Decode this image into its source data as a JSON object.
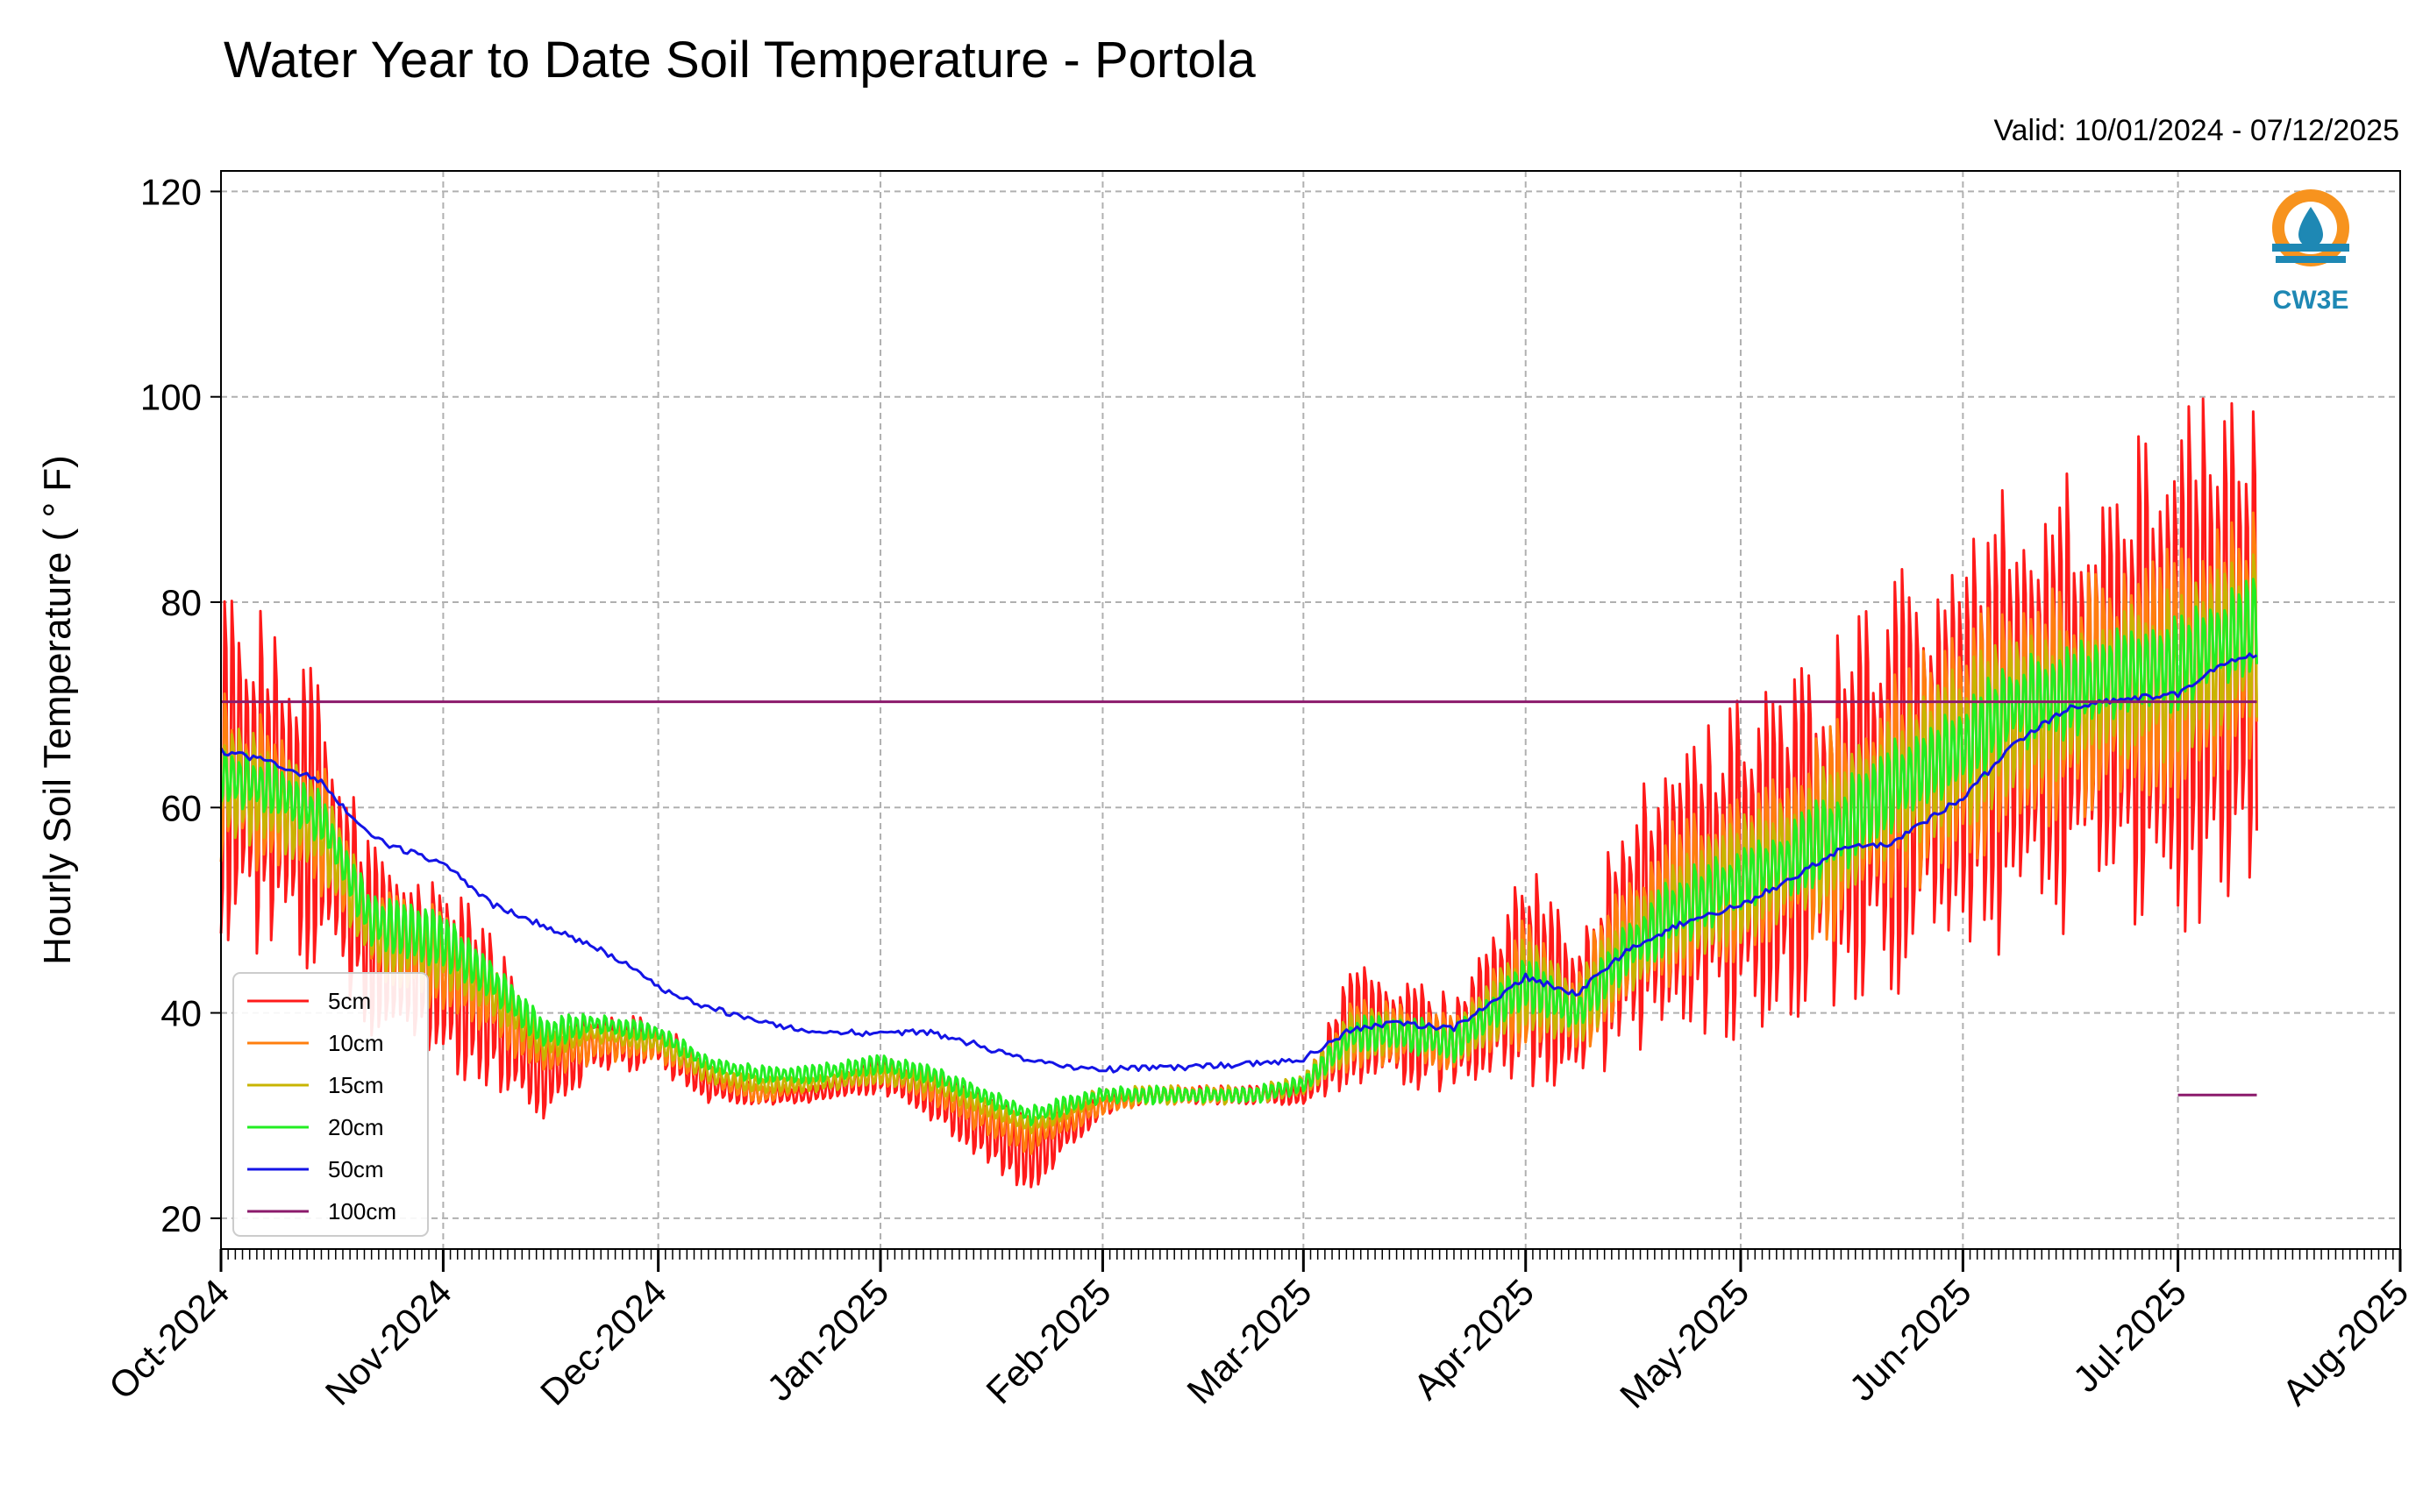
{
  "chart_data": {
    "type": "line",
    "title": "Water Year to Date Soil Temperature - Portola",
    "subtitle": "Valid: 10/01/2024 - 07/12/2025",
    "xlabel": "",
    "ylabel": "Hourly Soil Temperature ( ° F)",
    "ylim": [
      17,
      122
    ],
    "yticks": [
      20,
      40,
      60,
      80,
      100,
      120
    ],
    "xlim": [
      "2024-10-01",
      "2025-08-01"
    ],
    "x_tick_labels": [
      "Oct-2024",
      "Nov-2024",
      "Dec-2024",
      "Jan-2025",
      "Feb-2025",
      "Mar-2025",
      "Apr-2025",
      "May-2025",
      "Jun-2025",
      "Jul-2025",
      "Aug-2025"
    ],
    "x_tick_dates": [
      "2024-10-01",
      "2024-11-01",
      "2024-12-01",
      "2025-01-01",
      "2025-02-01",
      "2025-03-01",
      "2025-04-01",
      "2025-05-01",
      "2025-06-01",
      "2025-07-01",
      "2025-08-01"
    ],
    "grid": true,
    "legend_position": "lower-left",
    "logo_text": "CW3E",
    "series": [
      {
        "name": "5cm",
        "color": "#ff1a1a",
        "x": [
          "2024-10-01",
          "2024-10-08",
          "2024-10-15",
          "2024-10-22",
          "2024-11-01",
          "2024-11-08",
          "2024-11-15",
          "2024-11-22",
          "2024-12-01",
          "2024-12-08",
          "2024-12-15",
          "2024-12-22",
          "2025-01-01",
          "2025-01-08",
          "2025-01-15",
          "2025-01-22",
          "2025-02-01",
          "2025-02-08",
          "2025-02-15",
          "2025-02-22",
          "2025-03-01",
          "2025-03-08",
          "2025-03-15",
          "2025-03-22",
          "2025-04-01",
          "2025-04-08",
          "2025-04-15",
          "2025-04-22",
          "2025-05-01",
          "2025-05-08",
          "2025-05-15",
          "2025-05-22",
          "2025-06-01",
          "2025-06-08",
          "2025-06-15",
          "2025-06-22",
          "2025-07-01",
          "2025-07-06",
          "2025-07-12"
        ],
        "mean": [
          64,
          62,
          58,
          47,
          44,
          40,
          34,
          37,
          37,
          33,
          32,
          32,
          34,
          32,
          29,
          26,
          31,
          32,
          32,
          32,
          32,
          39,
          38,
          37,
          44,
          40,
          48,
          52,
          54,
          56,
          59,
          62,
          66,
          69,
          70,
          72,
          73,
          75,
          76
        ],
        "amp": [
          19,
          18,
          17,
          10,
          11,
          8,
          6,
          3,
          3,
          2,
          1,
          1,
          2,
          3,
          4,
          4,
          1,
          1,
          1,
          1,
          1,
          7,
          6,
          5,
          12,
          9,
          13,
          16,
          18,
          19,
          21,
          22,
          24,
          25,
          26,
          27,
          28,
          28,
          28
        ]
      },
      {
        "name": "10cm",
        "color": "#ff7f0e",
        "x": [
          "2024-10-01",
          "2024-10-08",
          "2024-10-15",
          "2024-10-22",
          "2024-11-01",
          "2024-11-08",
          "2024-11-15",
          "2024-11-22",
          "2024-12-01",
          "2024-12-08",
          "2024-12-15",
          "2024-12-22",
          "2025-01-01",
          "2025-01-08",
          "2025-01-15",
          "2025-01-22",
          "2025-02-01",
          "2025-02-08",
          "2025-02-15",
          "2025-02-22",
          "2025-03-01",
          "2025-03-08",
          "2025-03-15",
          "2025-03-22",
          "2025-04-01",
          "2025-04-08",
          "2025-04-15",
          "2025-04-22",
          "2025-05-01",
          "2025-05-08",
          "2025-05-15",
          "2025-05-22",
          "2025-06-01",
          "2025-06-08",
          "2025-06-15",
          "2025-06-22",
          "2025-07-01",
          "2025-07-06",
          "2025-07-12"
        ],
        "mean": [
          63,
          61,
          58,
          48,
          45,
          41,
          36,
          37,
          37,
          34,
          32,
          33,
          34,
          33,
          30,
          28,
          31,
          32,
          32,
          32,
          33,
          38,
          38,
          37,
          43,
          40,
          47,
          51,
          53,
          56,
          58,
          62,
          66,
          69,
          70,
          72,
          73,
          75,
          77
        ],
        "amp": [
          9,
          8,
          8,
          5,
          6,
          4,
          3,
          2,
          2,
          1,
          1,
          1,
          1,
          2,
          2,
          2,
          1,
          1,
          1,
          1,
          1,
          4,
          3,
          3,
          7,
          5,
          8,
          9,
          10,
          11,
          12,
          12,
          13,
          13,
          13,
          14,
          14,
          14,
          14
        ]
      },
      {
        "name": "15cm",
        "color": "#c8b400",
        "x": [
          "2024-10-01",
          "2024-10-08",
          "2024-10-15",
          "2024-10-22",
          "2024-11-01",
          "2024-11-08",
          "2024-11-15",
          "2024-11-22",
          "2024-12-01",
          "2024-12-08",
          "2024-12-15",
          "2024-12-22",
          "2025-01-01",
          "2025-01-08",
          "2025-01-15",
          "2025-01-22",
          "2025-02-01",
          "2025-02-08",
          "2025-02-15",
          "2025-02-22",
          "2025-03-01",
          "2025-03-08",
          "2025-03-15",
          "2025-03-22",
          "2025-04-01",
          "2025-04-08",
          "2025-04-15",
          "2025-04-22",
          "2025-05-01",
          "2025-05-08",
          "2025-05-15",
          "2025-05-22",
          "2025-06-01",
          "2025-06-08",
          "2025-06-15",
          "2025-06-22",
          "2025-07-01",
          "2025-07-06",
          "2025-07-12"
        ],
        "mean": [
          63,
          61,
          58,
          48,
          46,
          42,
          37,
          38,
          37,
          34,
          33,
          33,
          34,
          33,
          31,
          29,
          32,
          32,
          32,
          32,
          33,
          38,
          38,
          37,
          43,
          40,
          46,
          50,
          53,
          55,
          58,
          62,
          66,
          69,
          70,
          72,
          73,
          75,
          77
        ],
        "amp": [
          6,
          6,
          5,
          4,
          4,
          3,
          2,
          1,
          1,
          1,
          1,
          1,
          1,
          1,
          1,
          1,
          1,
          1,
          1,
          1,
          1,
          3,
          2,
          2,
          5,
          4,
          5,
          6,
          7,
          7,
          8,
          8,
          9,
          9,
          9,
          9,
          9,
          9,
          9
        ]
      },
      {
        "name": "20cm",
        "color": "#22ee22",
        "x": [
          "2024-10-01",
          "2024-10-08",
          "2024-10-15",
          "2024-10-22",
          "2024-11-01",
          "2024-11-08",
          "2024-11-15",
          "2024-11-22",
          "2024-12-01",
          "2024-12-08",
          "2024-12-15",
          "2024-12-22",
          "2025-01-01",
          "2025-01-08",
          "2025-01-15",
          "2025-01-22",
          "2025-02-01",
          "2025-02-08",
          "2025-02-15",
          "2025-02-22",
          "2025-03-01",
          "2025-03-08",
          "2025-03-15",
          "2025-03-22",
          "2025-04-01",
          "2025-04-08",
          "2025-04-15",
          "2025-04-22",
          "2025-05-01",
          "2025-05-08",
          "2025-05-15",
          "2025-05-22",
          "2025-06-01",
          "2025-06-08",
          "2025-06-15",
          "2025-06-22",
          "2025-07-01",
          "2025-07-06",
          "2025-07-12"
        ],
        "mean": [
          63,
          62,
          59,
          49,
          47,
          43,
          38,
          39,
          38,
          35,
          34,
          34,
          35,
          34,
          32,
          30,
          32,
          32,
          32,
          32,
          33,
          38,
          38,
          37,
          43,
          40,
          46,
          50,
          53,
          55,
          58,
          62,
          66,
          70,
          71,
          73,
          74,
          76,
          78
        ],
        "amp": [
          3,
          3,
          3,
          3,
          3,
          2,
          2,
          1,
          1,
          1,
          1,
          1,
          1,
          1,
          1,
          1,
          1,
          1,
          1,
          1,
          1,
          2,
          2,
          2,
          3,
          2,
          3,
          4,
          4,
          4,
          5,
          5,
          5,
          5,
          5,
          5,
          5,
          5,
          5
        ]
      },
      {
        "name": "50cm",
        "color": "#1414e6",
        "x": [
          "2024-10-01",
          "2024-10-08",
          "2024-10-15",
          "2024-10-22",
          "2024-11-01",
          "2024-11-08",
          "2024-11-15",
          "2024-11-22",
          "2024-11-27",
          "2024-12-01",
          "2024-12-08",
          "2024-12-15",
          "2024-12-22",
          "2025-01-01",
          "2025-01-08",
          "2025-01-15",
          "2025-01-22",
          "2025-02-01",
          "2025-02-08",
          "2025-02-15",
          "2025-02-22",
          "2025-03-01",
          "2025-03-08",
          "2025-03-15",
          "2025-03-22",
          "2025-04-01",
          "2025-04-08",
          "2025-04-15",
          "2025-04-22",
          "2025-05-01",
          "2025-05-08",
          "2025-05-15",
          "2025-05-22",
          "2025-06-01",
          "2025-06-08",
          "2025-06-15",
          "2025-06-22",
          "2025-07-01",
          "2025-07-06",
          "2025-07-12"
        ],
        "y": [
          65.5,
          64.5,
          62.5,
          57,
          54.5,
          50.5,
          48.5,
          46.5,
          44.5,
          42.5,
          40.5,
          39.2,
          38.2,
          38,
          38.1,
          36.8,
          35.2,
          34.5,
          34.6,
          34.8,
          35,
          35.5,
          38.5,
          39,
          38.5,
          43.5,
          41.8,
          46,
          48.5,
          50.5,
          53,
          56,
          56.5,
          61,
          66,
          69.5,
          70.5,
          71,
          73.5,
          75
        ]
      },
      {
        "name": "100cm",
        "color": "#8b1a6b",
        "segments": [
          {
            "x": [
              "2024-10-01",
              "2025-07-12"
            ],
            "y": [
              70.3,
              70.3
            ]
          },
          {
            "x": [
              "2025-07-01",
              "2025-07-12"
            ],
            "y": [
              32,
              32
            ]
          }
        ]
      }
    ]
  }
}
